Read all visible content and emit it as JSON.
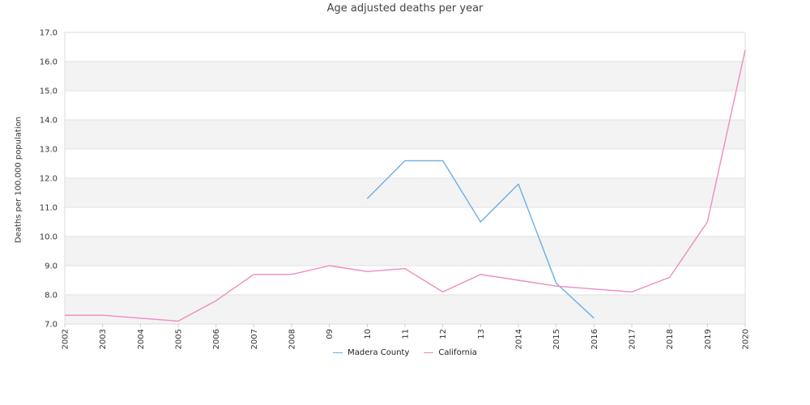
{
  "chart_data": {
    "type": "line",
    "title": "Age adjusted deaths per year",
    "xlabel": "",
    "ylabel": "Deaths per 100,000 population",
    "categories": [
      "2002",
      "2003",
      "2004",
      "2005",
      "2006",
      "2007",
      "2008",
      "09",
      "10",
      "11",
      "12",
      "13",
      "2014",
      "2015",
      "2016",
      "2017",
      "2018",
      "2019",
      "2020"
    ],
    "ylim": [
      7.0,
      17.0
    ],
    "yticks": [
      "7.0",
      "8.0",
      "9.0",
      "10.0",
      "11.0",
      "12.0",
      "13.0",
      "14.0",
      "15.0",
      "16.0",
      "17.0"
    ],
    "series": [
      {
        "name": "Madera County",
        "color": "#6aaee8",
        "values": [
          null,
          null,
          null,
          null,
          null,
          null,
          null,
          null,
          11.3,
          12.6,
          12.6,
          10.5,
          11.8,
          8.4,
          7.2,
          null,
          null,
          null,
          null
        ]
      },
      {
        "name": "California",
        "color": "#ee8cbe",
        "values": [
          7.3,
          7.3,
          7.2,
          7.1,
          7.8,
          8.7,
          8.7,
          9.0,
          8.8,
          8.9,
          8.1,
          8.7,
          8.5,
          8.3,
          8.2,
          8.1,
          8.6,
          10.5,
          16.4
        ]
      }
    ],
    "grid": "alternating horizontal bands",
    "legend": "bottom-center"
  }
}
